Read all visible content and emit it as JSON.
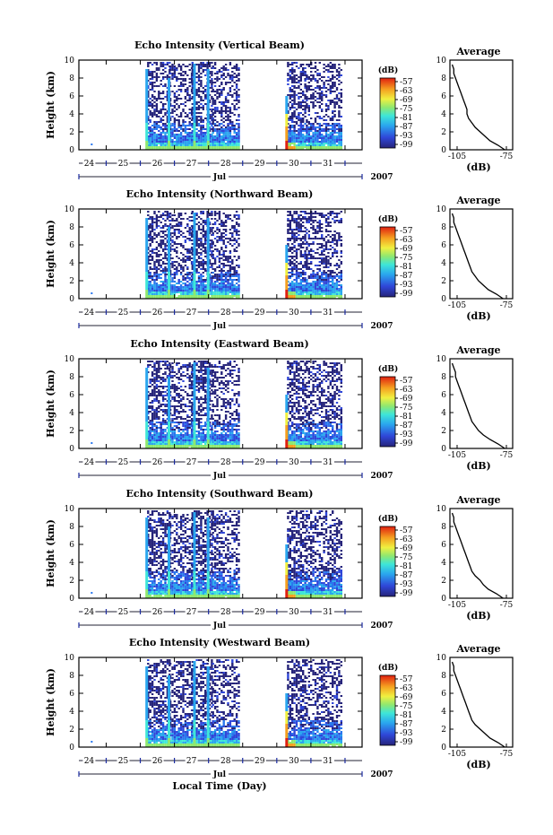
{
  "figure": {
    "xlabel": "Local Time (Day)",
    "month_label": "Jul",
    "year_label": "2007",
    "ylabel": "Height (km)",
    "cbar_unit": "(dB)",
    "avg_title": "Average",
    "avg_xlabel": "(dB)"
  },
  "chart_data": [
    {
      "type": "heatmap",
      "title": "Echo Intensity (Vertical Beam)",
      "x_ticks": [
        "24",
        "25",
        "26",
        "27",
        "28",
        "29",
        "30",
        "31"
      ],
      "y_ticks": [
        "0",
        "2",
        "4",
        "6",
        "8",
        "10"
      ],
      "ylim": [
        0,
        10
      ],
      "colorbar_ticks": [
        "-57",
        "-63",
        "-69",
        "-75",
        "-81",
        "-87",
        "-93",
        "-99"
      ],
      "profile": {
        "title": "Average",
        "x_ticks": [
          "-105",
          "-75"
        ],
        "y_ticks": [
          "0",
          "2",
          "4",
          "6",
          "8",
          "10"
        ],
        "height": [
          0,
          0.5,
          1,
          1.5,
          2,
          2.5,
          3,
          3.5,
          4,
          4.5,
          5,
          5.5,
          6,
          6.5,
          7,
          7.5,
          8,
          8.5,
          9,
          9.5
        ],
        "db": [
          -76,
          -80,
          -85,
          -88,
          -91,
          -94,
          -96,
          -98,
          -99,
          -99,
          -100,
          -101,
          -102,
          -103,
          -104,
          -105,
          -106,
          -107,
          -107,
          -108
        ]
      }
    },
    {
      "type": "heatmap",
      "title": "Echo Intensity (Northward Beam)",
      "x_ticks": [
        "24",
        "25",
        "26",
        "27",
        "28",
        "29",
        "30",
        "31"
      ],
      "y_ticks": [
        "0",
        "2",
        "4",
        "6",
        "8",
        "10"
      ],
      "ylim": [
        0,
        10
      ],
      "colorbar_ticks": [
        "-57",
        "-63",
        "-69",
        "-75",
        "-81",
        "-87",
        "-93",
        "-99"
      ],
      "profile": {
        "title": "Average",
        "x_ticks": [
          "-105",
          "-75"
        ],
        "y_ticks": [
          "0",
          "2",
          "4",
          "6",
          "8",
          "10"
        ],
        "height": [
          0,
          0.5,
          1,
          1.5,
          2,
          2.5,
          3,
          3.5,
          4,
          4.5,
          5,
          5.5,
          6,
          6.5,
          7,
          7.5,
          8,
          8.5,
          9,
          9.5
        ],
        "db": [
          -77,
          -81,
          -86,
          -89,
          -92,
          -94,
          -96,
          -97,
          -98,
          -99,
          -100,
          -101,
          -102,
          -103,
          -104,
          -105,
          -106,
          -107,
          -107,
          -108
        ]
      }
    },
    {
      "type": "heatmap",
      "title": "Echo Intensity (Eastward Beam)",
      "x_ticks": [
        "24",
        "25",
        "26",
        "27",
        "28",
        "29",
        "30",
        "31"
      ],
      "y_ticks": [
        "0",
        "2",
        "4",
        "6",
        "8",
        "10"
      ],
      "ylim": [
        0,
        10
      ],
      "colorbar_ticks": [
        "-57",
        "-63",
        "-69",
        "-75",
        "-81",
        "-87",
        "-93",
        "-99"
      ],
      "profile": {
        "title": "Average",
        "x_ticks": [
          "-105",
          "-75"
        ],
        "y_ticks": [
          "0",
          "2",
          "4",
          "6",
          "8",
          "10"
        ],
        "height": [
          0,
          0.5,
          1,
          1.5,
          2,
          2.5,
          3,
          3.5,
          4,
          4.5,
          5,
          5.5,
          6,
          6.5,
          7,
          7.5,
          8,
          8.5,
          9,
          9.5
        ],
        "db": [
          -76,
          -80,
          -85,
          -89,
          -92,
          -94,
          -96,
          -97,
          -98,
          -99,
          -100,
          -101,
          -102,
          -103,
          -104,
          -105,
          -106,
          -106,
          -107,
          -108
        ]
      }
    },
    {
      "type": "heatmap",
      "title": "Echo Intensity (Southward Beam)",
      "x_ticks": [
        "24",
        "25",
        "26",
        "27",
        "28",
        "29",
        "30",
        "31"
      ],
      "y_ticks": [
        "0",
        "2",
        "4",
        "6",
        "8",
        "10"
      ],
      "ylim": [
        0,
        10
      ],
      "colorbar_ticks": [
        "-57",
        "-63",
        "-69",
        "-75",
        "-81",
        "-87",
        "-93",
        "-99"
      ],
      "profile": {
        "title": "Average",
        "x_ticks": [
          "-105",
          "-75"
        ],
        "y_ticks": [
          "0",
          "2",
          "4",
          "6",
          "8",
          "10"
        ],
        "height": [
          0,
          0.5,
          1,
          1.5,
          2,
          2.5,
          3,
          3.5,
          4,
          4.5,
          5,
          5.5,
          6,
          6.5,
          7,
          7.5,
          8,
          8.5,
          9,
          9.5
        ],
        "db": [
          -77,
          -81,
          -86,
          -89,
          -91,
          -94,
          -96,
          -97,
          -98,
          -99,
          -100,
          -101,
          -102,
          -103,
          -104,
          -105,
          -106,
          -107,
          -107,
          -108
        ]
      }
    },
    {
      "type": "heatmap",
      "title": "Echo Intensity (Westward Beam)",
      "x_ticks": [
        "24",
        "25",
        "26",
        "27",
        "28",
        "29",
        "30",
        "31"
      ],
      "y_ticks": [
        "0",
        "2",
        "4",
        "6",
        "8",
        "10"
      ],
      "ylim": [
        0,
        10
      ],
      "colorbar_ticks": [
        "-57",
        "-63",
        "-69",
        "-75",
        "-81",
        "-87",
        "-93",
        "-99"
      ],
      "profile": {
        "title": "Average",
        "x_ticks": [
          "-105",
          "-75"
        ],
        "y_ticks": [
          "0",
          "2",
          "4",
          "6",
          "8",
          "10"
        ],
        "height": [
          0,
          0.5,
          1,
          1.5,
          2,
          2.5,
          3,
          3.5,
          4,
          4.5,
          5,
          5.5,
          6,
          6.5,
          7,
          7.5,
          8,
          8.5,
          9,
          9.5
        ],
        "db": [
          -76,
          -80,
          -85,
          -88,
          -91,
          -94,
          -96,
          -97,
          -98,
          -99,
          -100,
          -101,
          -102,
          -103,
          -104,
          -105,
          -106,
          -107,
          -107,
          -108
        ]
      }
    }
  ]
}
